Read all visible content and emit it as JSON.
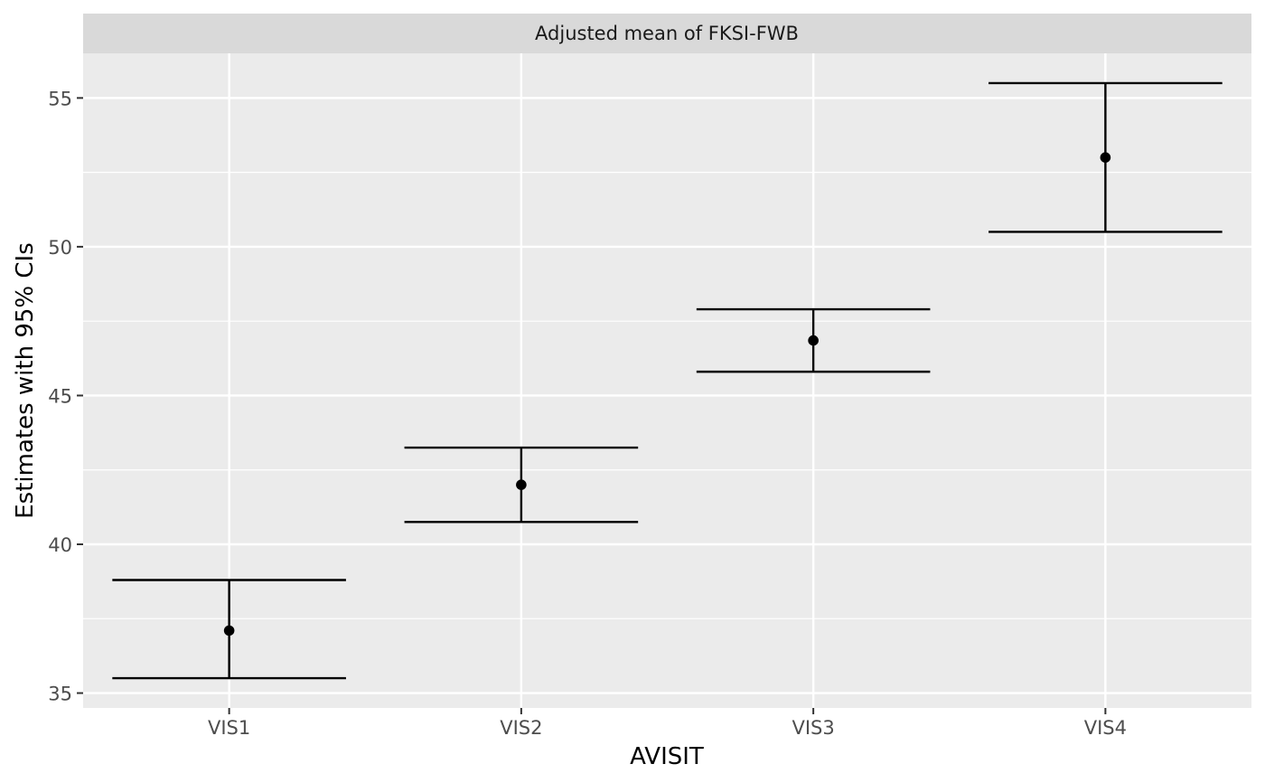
{
  "chart_data": {
    "type": "errorbar",
    "facet_title": "Adjusted mean of FKSI-FWB",
    "xlabel": "AVISIT",
    "ylabel": "Estimates with 95% CIs",
    "categories": [
      "VIS1",
      "VIS2",
      "VIS3",
      "VIS4"
    ],
    "estimates": [
      37.1,
      42.0,
      46.85,
      53.0
    ],
    "lower": [
      35.5,
      40.75,
      45.8,
      50.5
    ],
    "upper": [
      38.8,
      43.25,
      47.9,
      55.5
    ],
    "ylim": [
      34.5,
      56.5
    ],
    "y_ticks": [
      35,
      40,
      45,
      50,
      55
    ],
    "y_minor_ticks": [
      37.5,
      42.5,
      47.5,
      52.5
    ],
    "grid": true,
    "colors": {
      "panel_background": "#ebebeb",
      "strip_background": "#d9d9d9",
      "grid": "#ffffff",
      "marks": "#000000"
    }
  }
}
